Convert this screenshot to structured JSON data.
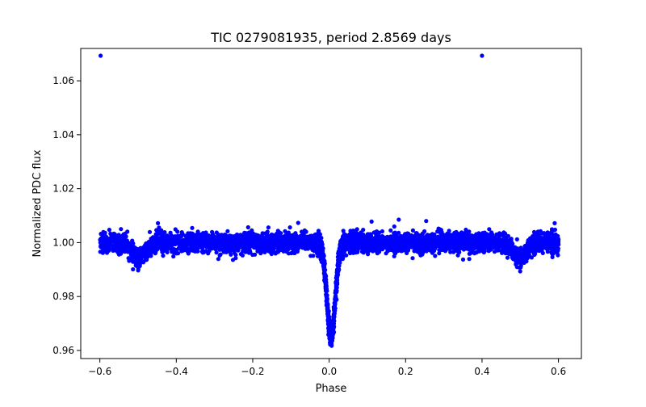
{
  "chart_data": {
    "type": "scatter",
    "title": "TIC 0279081935, period 2.8569 days",
    "xlabel": "Phase",
    "ylabel": "Normalized PDC flux",
    "xlim": [
      -0.65,
      0.66
    ],
    "ylim": [
      0.957,
      1.072
    ],
    "x_ticks": [
      -0.6,
      -0.4,
      -0.2,
      0.0,
      0.2,
      0.4,
      0.6
    ],
    "x_tick_labels": [
      "−0.6",
      "−0.4",
      "−0.2",
      "0.0",
      "0.2",
      "0.4",
      "0.6"
    ],
    "y_ticks": [
      0.96,
      0.98,
      1.0,
      1.02,
      1.04,
      1.06
    ],
    "y_tick_labels": [
      "0.96",
      "0.98",
      "1.00",
      "1.02",
      "1.04",
      "1.06"
    ],
    "marker_color": "#0000ff",
    "grid": false,
    "phase_range": [
      -0.6,
      0.6
    ],
    "baseline_flux": 1.0,
    "scatter_sigma": 0.0019,
    "primary_eclipse": {
      "phase": 0.005,
      "depth": 0.035,
      "width": 0.011
    },
    "secondary_eclipse": {
      "phases": [
        -0.5,
        0.5
      ],
      "depth": 0.0055,
      "width": 0.017
    },
    "n_points": 4500,
    "outliers": [
      {
        "x": -0.598,
        "y": 1.0693
      },
      {
        "x": 0.4,
        "y": 1.0693
      },
      {
        "x": 0.182,
        "y": 1.0085
      },
      {
        "x": 0.254,
        "y": 1.008
      },
      {
        "x": -0.081,
        "y": 1.0073
      },
      {
        "x": 0.111,
        "y": 1.0078
      },
      {
        "x": -0.448,
        "y": 1.0072
      },
      {
        "x": 0.59,
        "y": 1.0072
      }
    ]
  }
}
